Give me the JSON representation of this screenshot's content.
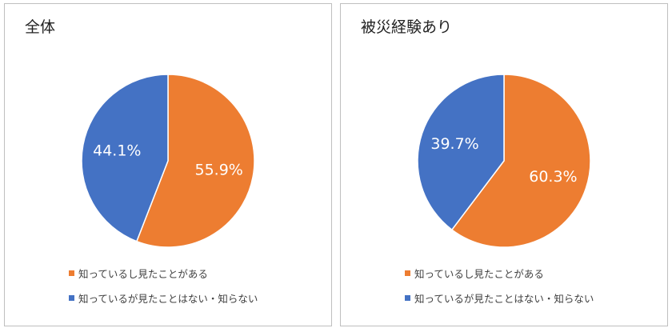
{
  "chart_data": [
    {
      "type": "pie",
      "title": "全体",
      "categories": [
        "知っているし見たことがある",
        "知っているが見たことはない・知らない"
      ],
      "values": [
        55.9,
        44.1
      ],
      "data_labels": [
        "55.9%",
        "44.1%"
      ],
      "colors": [
        "#ED7D31",
        "#4472C4"
      ],
      "legend_position": "bottom"
    },
    {
      "type": "pie",
      "title": "被災経験あり",
      "categories": [
        "知っているし見たことがある",
        "知っているが見たことはない・知らない"
      ],
      "values": [
        60.3,
        39.7
      ],
      "data_labels": [
        "60.3%",
        "39.7%"
      ],
      "colors": [
        "#ED7D31",
        "#4472C4"
      ],
      "legend_position": "bottom"
    }
  ]
}
